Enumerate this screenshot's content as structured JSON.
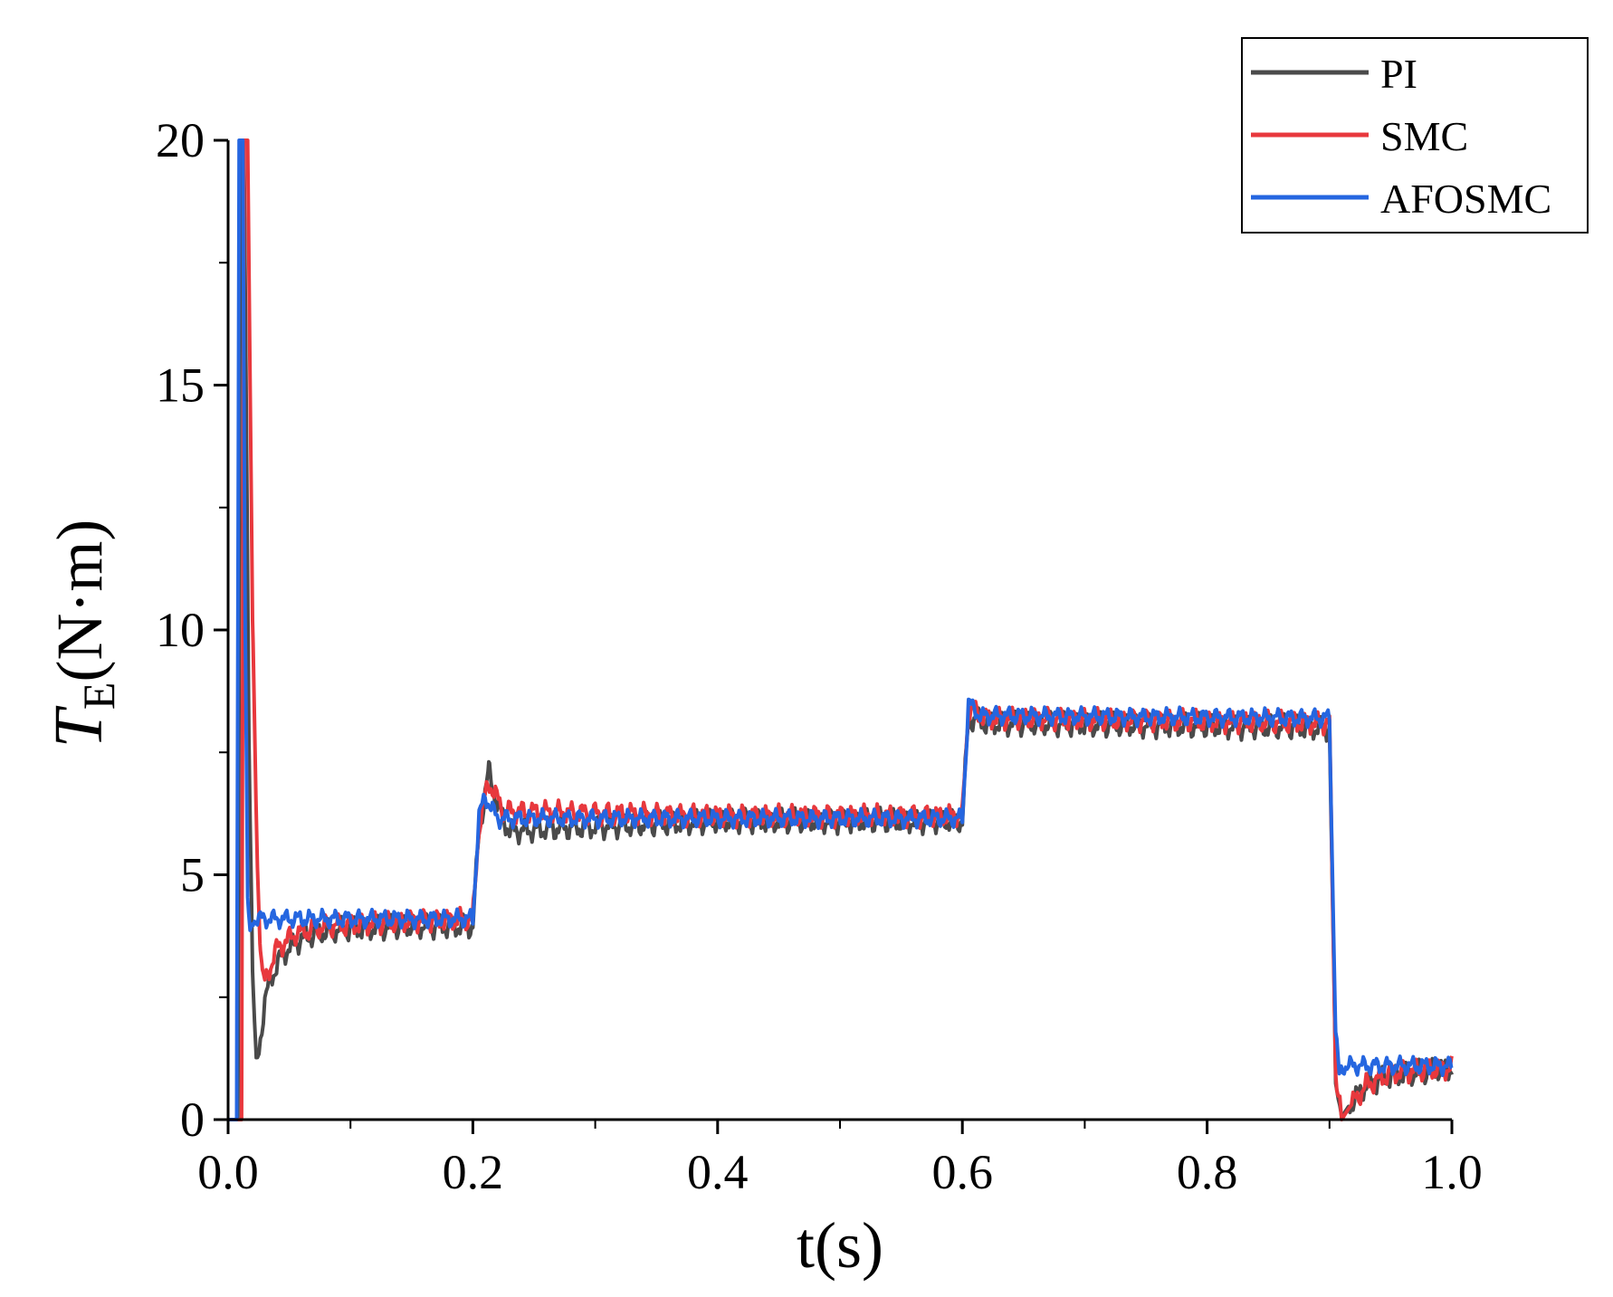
{
  "chart_data": {
    "type": "line",
    "title": "",
    "xlabel": "t(s)",
    "ylabel": {
      "symbol": "T",
      "subscript": "E",
      "unit": "(N·m)"
    },
    "xlim": [
      0.0,
      1.0
    ],
    "ylim": [
      0,
      20
    ],
    "x_ticks": [
      0.0,
      0.2,
      0.4,
      0.6,
      0.8,
      1.0
    ],
    "x_tick_labels": [
      "0.0",
      "0.2",
      "0.4",
      "0.6",
      "0.8",
      "1.0"
    ],
    "y_ticks": [
      0,
      5,
      10,
      15,
      20
    ],
    "y_tick_labels": [
      "0",
      "5",
      "10",
      "15",
      "20"
    ],
    "grid": false,
    "legend": {
      "position": "top-right"
    },
    "series": [
      {
        "name": "PI",
        "color": "#4a4a4a",
        "points": [
          [
            0.0,
            0
          ],
          [
            0.008,
            0
          ],
          [
            0.01,
            20
          ],
          [
            0.013,
            20
          ],
          [
            0.017,
            8
          ],
          [
            0.02,
            3
          ],
          [
            0.023,
            1.0
          ],
          [
            0.026,
            1.6
          ],
          [
            0.03,
            2.4
          ],
          [
            0.035,
            2.9
          ],
          [
            0.045,
            3.4
          ],
          [
            0.06,
            3.7
          ],
          [
            0.08,
            3.85
          ],
          [
            0.1,
            3.9
          ],
          [
            0.15,
            3.95
          ],
          [
            0.2,
            3.95
          ],
          [
            0.205,
            5.9
          ],
          [
            0.213,
            7.1
          ],
          [
            0.22,
            6.4
          ],
          [
            0.23,
            5.9
          ],
          [
            0.4,
            6.1
          ],
          [
            0.6,
            6.1
          ],
          [
            0.605,
            8.2
          ],
          [
            0.62,
            8.1
          ],
          [
            0.9,
            8.0
          ],
          [
            0.905,
            0.8
          ],
          [
            0.91,
            0.05
          ],
          [
            0.915,
            0.25
          ],
          [
            0.93,
            0.7
          ],
          [
            0.95,
            0.9
          ],
          [
            1.0,
            1.05
          ]
        ],
        "ripple": 0.55
      },
      {
        "name": "SMC",
        "color": "#e8383d",
        "points": [
          [
            0.0,
            0
          ],
          [
            0.011,
            0
          ],
          [
            0.013,
            20
          ],
          [
            0.016,
            20
          ],
          [
            0.02,
            10
          ],
          [
            0.024,
            5.2
          ],
          [
            0.026,
            3.8
          ],
          [
            0.028,
            2.9
          ],
          [
            0.03,
            2.8
          ],
          [
            0.034,
            3.1
          ],
          [
            0.04,
            3.5
          ],
          [
            0.055,
            3.8
          ],
          [
            0.08,
            3.95
          ],
          [
            0.15,
            4.05
          ],
          [
            0.2,
            4.1
          ],
          [
            0.205,
            6.0
          ],
          [
            0.213,
            6.9
          ],
          [
            0.225,
            6.3
          ],
          [
            0.4,
            6.2
          ],
          [
            0.6,
            6.2
          ],
          [
            0.605,
            8.4
          ],
          [
            0.62,
            8.2
          ],
          [
            0.9,
            8.1
          ],
          [
            0.905,
            1.0
          ],
          [
            0.91,
            0.0
          ],
          [
            0.915,
            0.2
          ],
          [
            0.93,
            0.7
          ],
          [
            0.95,
            0.95
          ],
          [
            1.0,
            1.05
          ]
        ],
        "ripple": 0.5
      },
      {
        "name": "AFOSMC",
        "color": "#2566e0",
        "points": [
          [
            0.0,
            0
          ],
          [
            0.007,
            0
          ],
          [
            0.009,
            20
          ],
          [
            0.012,
            20
          ],
          [
            0.014,
            10
          ],
          [
            0.016,
            4.5
          ],
          [
            0.018,
            3.7
          ],
          [
            0.02,
            4.1
          ],
          [
            0.2,
            4.1
          ],
          [
            0.205,
            6.2
          ],
          [
            0.21,
            6.6
          ],
          [
            0.22,
            6.15
          ],
          [
            0.6,
            6.15
          ],
          [
            0.605,
            8.5
          ],
          [
            0.615,
            8.25
          ],
          [
            0.9,
            8.2
          ],
          [
            0.905,
            1.8
          ],
          [
            0.908,
            0.9
          ],
          [
            0.912,
            1.1
          ],
          [
            1.0,
            1.1
          ]
        ],
        "ripple": 0.4
      }
    ]
  }
}
